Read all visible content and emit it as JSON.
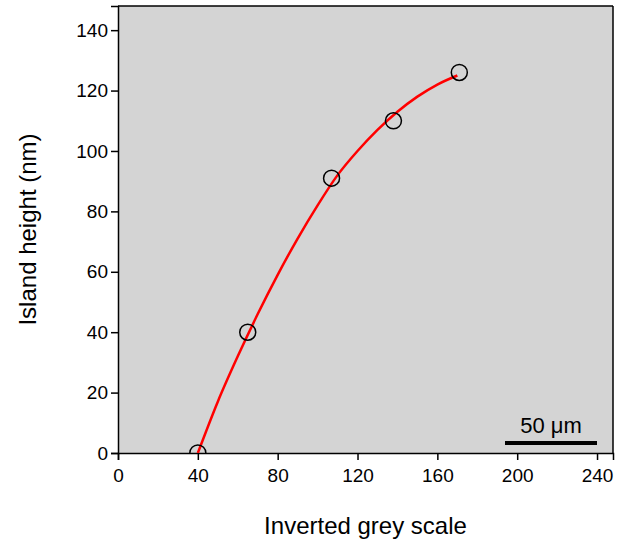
{
  "chart_data": {
    "type": "scatter",
    "x_label": "Inverted grey scale",
    "y_label": "Island height (nm)",
    "xlim": [
      0,
      248
    ],
    "ylim": [
      0,
      148
    ],
    "xticks": [
      0,
      40,
      80,
      120,
      160,
      200,
      240
    ],
    "yticks": [
      0,
      20,
      40,
      60,
      80,
      100,
      120,
      140
    ],
    "grid": false,
    "series": [
      {
        "type": "scatter",
        "marker": "circle",
        "color": "#000000",
        "x": [
          40,
          65,
          107,
          138,
          171
        ],
        "values": [
          0,
          40,
          91,
          110,
          126
        ]
      },
      {
        "type": "line",
        "line_style": "solid",
        "color": "#ff0000",
        "x": [
          40,
          50,
          60,
          70,
          80,
          90,
          100,
          110,
          120,
          130,
          140,
          150,
          160,
          170
        ],
        "values": [
          0,
          17,
          32,
          46,
          59,
          71,
          82,
          92,
          100,
          107,
          113,
          118,
          122,
          125
        ]
      }
    ],
    "annotations": [
      {
        "text": "50 μm"
      }
    ]
  }
}
